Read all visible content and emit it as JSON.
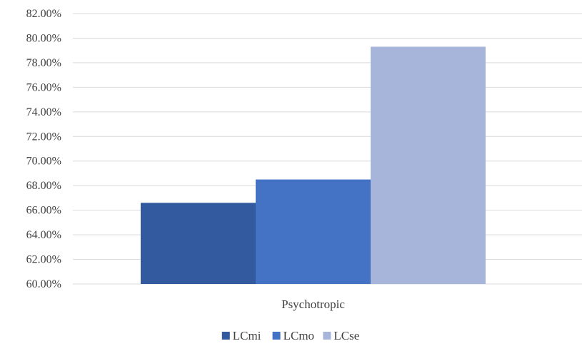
{
  "chart_data": {
    "type": "bar",
    "categories": [
      "Psychotropic"
    ],
    "series": [
      {
        "name": "LCmi",
        "values": [
          66.6
        ],
        "color": "#335A9E"
      },
      {
        "name": "LCmo",
        "values": [
          68.5
        ],
        "color": "#4472C4"
      },
      {
        "name": "LCse",
        "values": [
          79.3
        ],
        "color": "#A7B5DB"
      }
    ],
    "ylim": [
      60,
      82
    ],
    "yticks": [
      "60.00%",
      "62.00%",
      "64.00%",
      "66.00%",
      "68.00%",
      "70.00%",
      "72.00%",
      "74.00%",
      "76.00%",
      "78.00%",
      "80.00%",
      "82.00%"
    ],
    "grid": true,
    "legend_position": "bottom",
    "title": "",
    "xlabel": "",
    "ylabel": ""
  }
}
